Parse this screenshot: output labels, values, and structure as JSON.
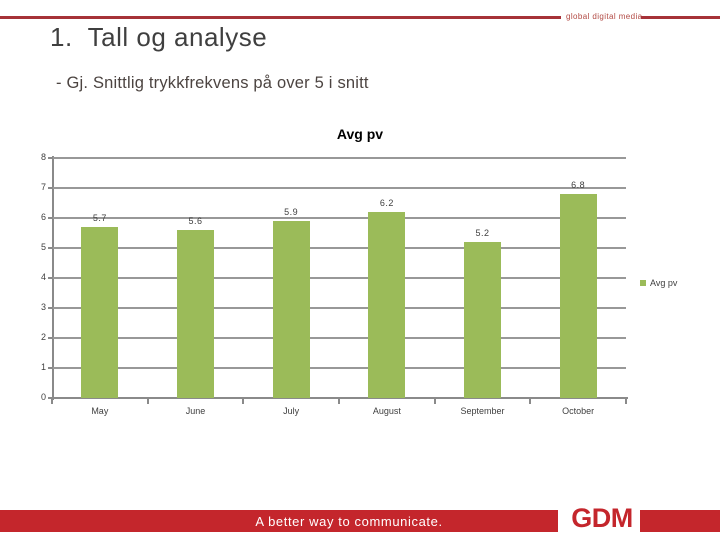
{
  "header": {
    "brand_text": "global digital media",
    "title": "1.  Tall og analyse",
    "subtitle": "- Gj. Snittlig trykkfrekvens på over 5 i snitt"
  },
  "chart_data": {
    "type": "bar",
    "title": "Avg pv",
    "categories": [
      "May",
      "June",
      "July",
      "August",
      "September",
      "October"
    ],
    "series": [
      {
        "name": "Avg pv",
        "values": [
          5.7,
          5.6,
          5.9,
          6.2,
          5.2,
          6.8
        ]
      }
    ],
    "data_labels": [
      "5.7",
      "5.6",
      "5.9",
      "6.2",
      "5.2",
      "6.8"
    ],
    "xlabel": "",
    "ylabel": "",
    "ylim": [
      0,
      8
    ],
    "ytick_step": 1,
    "grid": true,
    "legend_position": "right",
    "legend_label": "Avg pv",
    "bar_color": "#9BBB59"
  },
  "footer": {
    "tagline": "A better way to communicate.",
    "logo_text": "GDM"
  },
  "colors": {
    "accent_red": "#C4262C",
    "rule_red": "#A63238",
    "bar_green": "#9BBB59",
    "grid_gray": "#989898",
    "text_gray": "#3F3F3F"
  }
}
